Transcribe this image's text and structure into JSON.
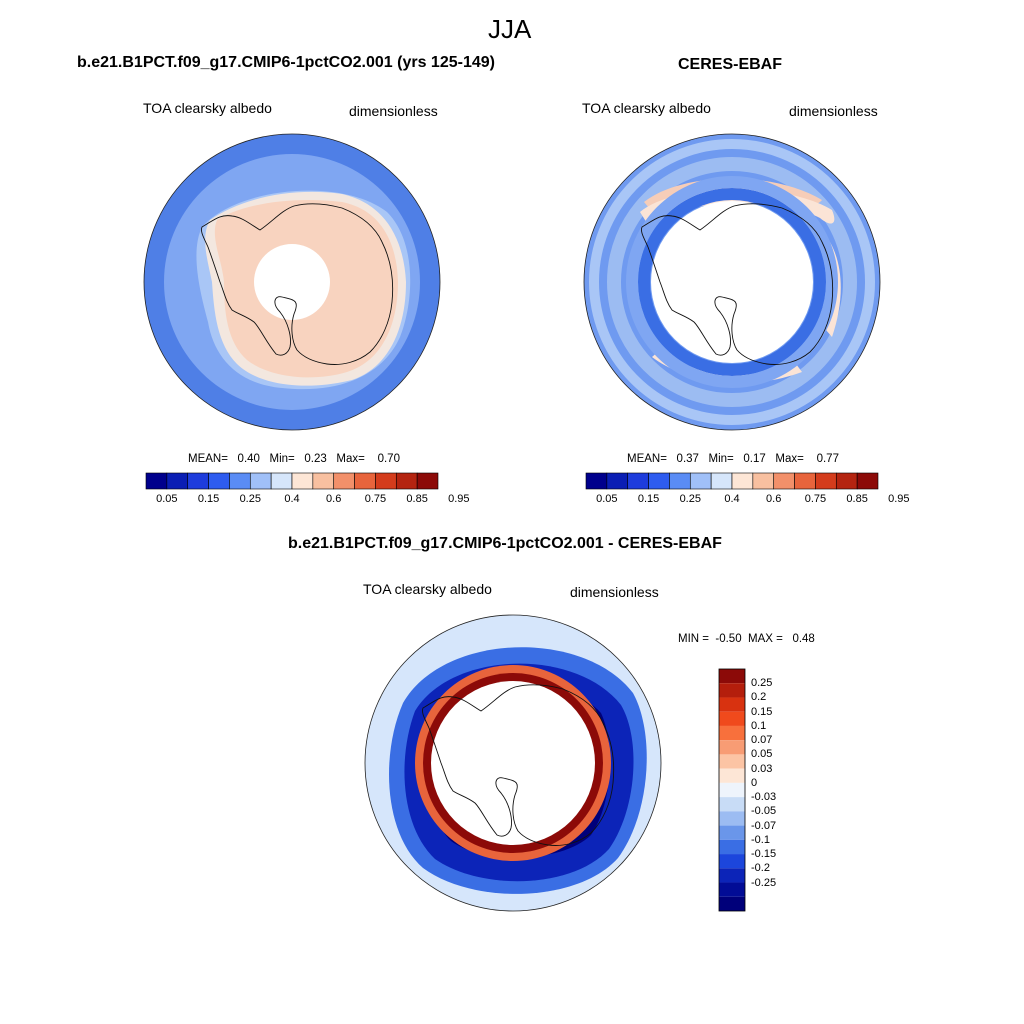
{
  "figure": {
    "title": "JJA"
  },
  "colors": {
    "ocean_blue": "#4f7fe6",
    "ice_shelf": "#f8d3bf",
    "coast": "#111111"
  },
  "panels": [
    {
      "id": "model",
      "title": "b.e21.B1PCT.f09_g17.CMIP6-1pctCO2.001 (yrs 125-149)",
      "left_label": "TOA clearsky albedo",
      "right_label": "dimensionless",
      "stats": {
        "mean_label": "MEAN=",
        "mean": "0.40",
        "min_label": "Min=",
        "min": "0.23",
        "max_label": "Max=",
        "max": "0.70"
      }
    },
    {
      "id": "obs",
      "title": "CERES-EBAF",
      "left_label": "TOA clearsky albedo",
      "right_label": "dimensionless",
      "stats": {
        "mean_label": "MEAN=",
        "mean": "0.37",
        "min_label": "Min=",
        "min": "0.17",
        "max_label": "Max=",
        "max": "0.77"
      }
    },
    {
      "id": "diff",
      "title": "b.e21.B1PCT.f09_g17.CMIP6-1pctCO2.001 - CERES-EBAF",
      "left_label": "TOA clearsky albedo",
      "right_label": "dimensionless",
      "stats": {
        "min_label": "MIN =",
        "min": "-0.50",
        "max_label": "MAX =",
        "max": "0.48"
      }
    }
  ],
  "colorbar_horizontal": {
    "colors": [
      "#00008c",
      "#0a1eb4",
      "#1e3cdc",
      "#2e5cf0",
      "#5a8cf5",
      "#a0c0f8",
      "#d6e6fb",
      "#fde6d6",
      "#f8c0a0",
      "#f2906a",
      "#e8643c",
      "#d43c1c",
      "#b42410",
      "#8c0a08"
    ],
    "tick_labels": [
      "0.05",
      "0.15",
      "0.25",
      "0.4",
      "0.6",
      "0.75",
      "0.85",
      "0.95"
    ]
  },
  "colorbar_vertical": {
    "colors": [
      "#8c0a08",
      "#b41e0c",
      "#d83210",
      "#f04a1c",
      "#f8703c",
      "#f89c74",
      "#fcc4a4",
      "#fde6d6",
      "#eef4fc",
      "#c8dcf6",
      "#9cbcf2",
      "#6a96ea",
      "#3a6ee4",
      "#1c46dc",
      "#0c24b8",
      "#020c96",
      "#00007a"
    ],
    "tick_labels": [
      "0.25",
      "0.2",
      "0.15",
      "0.1",
      "0.07",
      "0.05",
      "0.03",
      "0",
      "-0.03",
      "-0.05",
      "-0.07",
      "-0.1",
      "-0.15",
      "-0.2",
      "-0.25"
    ]
  }
}
